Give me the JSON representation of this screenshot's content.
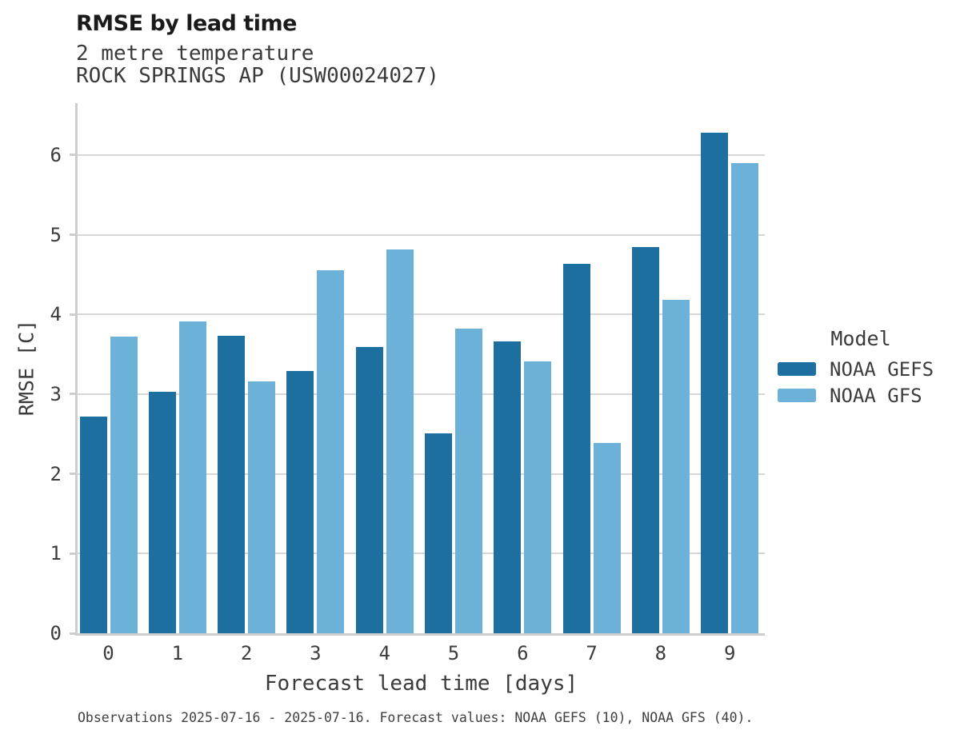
{
  "header": {
    "title": "RMSE by lead time",
    "subtitle1": "2 metre temperature",
    "subtitle2": "ROCK SPRINGS AP (USW00024027)"
  },
  "axes": {
    "xlabel": "Forecast lead time [days]",
    "ylabel": "RMSE [C]"
  },
  "legend": {
    "title": "Model"
  },
  "footer": {
    "caption": "Observations 2025-07-16 - 2025-07-16. Forecast values: NOAA GEFS (10), NOAA GFS (40)."
  },
  "colors": {
    "gefs": "#1d6f9f",
    "gfs": "#6cb1d8",
    "grid": "#d7d7d7",
    "spine": "#cdcdcd",
    "text": "#3c3c3c"
  },
  "chart_data": {
    "type": "bar",
    "title": "RMSE by lead time",
    "subtitle": "2 metre temperature",
    "station": "ROCK SPRINGS AP (USW00024027)",
    "xlabel": "Forecast lead time [days]",
    "ylabel": "RMSE [C]",
    "caption": "Observations 2025-07-16 - 2025-07-16. Forecast values: NOAA GEFS (10), NOAA GFS (40).",
    "legend_title": "Model",
    "legend_position": "right",
    "grid": true,
    "categories": [
      "0",
      "1",
      "2",
      "3",
      "4",
      "5",
      "6",
      "7",
      "8",
      "9"
    ],
    "series": [
      {
        "name": "NOAA GEFS",
        "color": "#1d6f9f",
        "values": [
          2.72,
          3.03,
          3.73,
          3.29,
          3.59,
          2.51,
          3.66,
          4.63,
          4.84,
          6.28
        ]
      },
      {
        "name": "NOAA GFS",
        "color": "#6cb1d8",
        "values": [
          3.72,
          3.91,
          3.16,
          4.55,
          4.81,
          3.82,
          3.41,
          2.39,
          4.18,
          5.9
        ]
      }
    ],
    "ylim": [
      0,
      6.65
    ],
    "yticks": [
      0,
      1,
      2,
      3,
      4,
      5,
      6
    ]
  }
}
